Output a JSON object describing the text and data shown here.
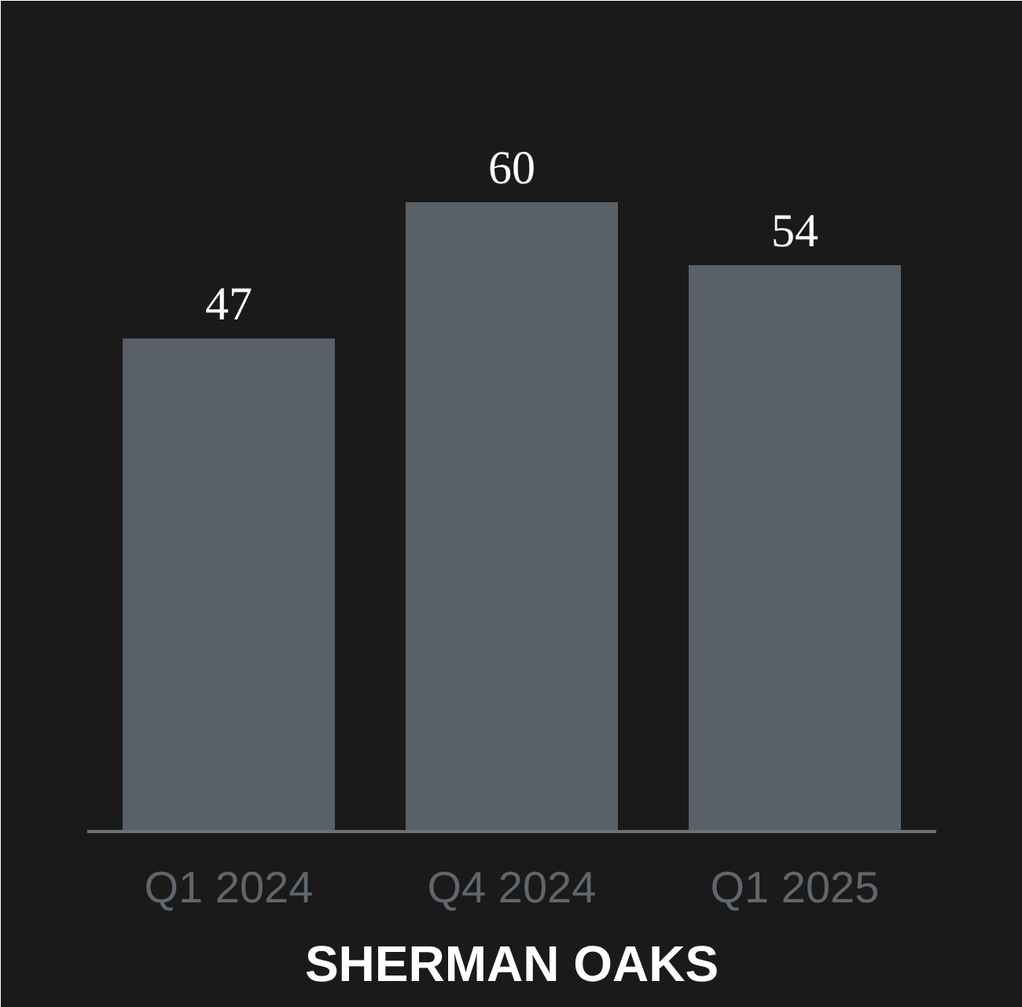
{
  "chart_data": {
    "type": "bar",
    "title": "SHERMAN OAKS",
    "categories": [
      "Q1 2024",
      "Q4 2024",
      "Q1 2025"
    ],
    "values": [
      47,
      60,
      54
    ],
    "color": "#596068",
    "data_labels": true
  }
}
